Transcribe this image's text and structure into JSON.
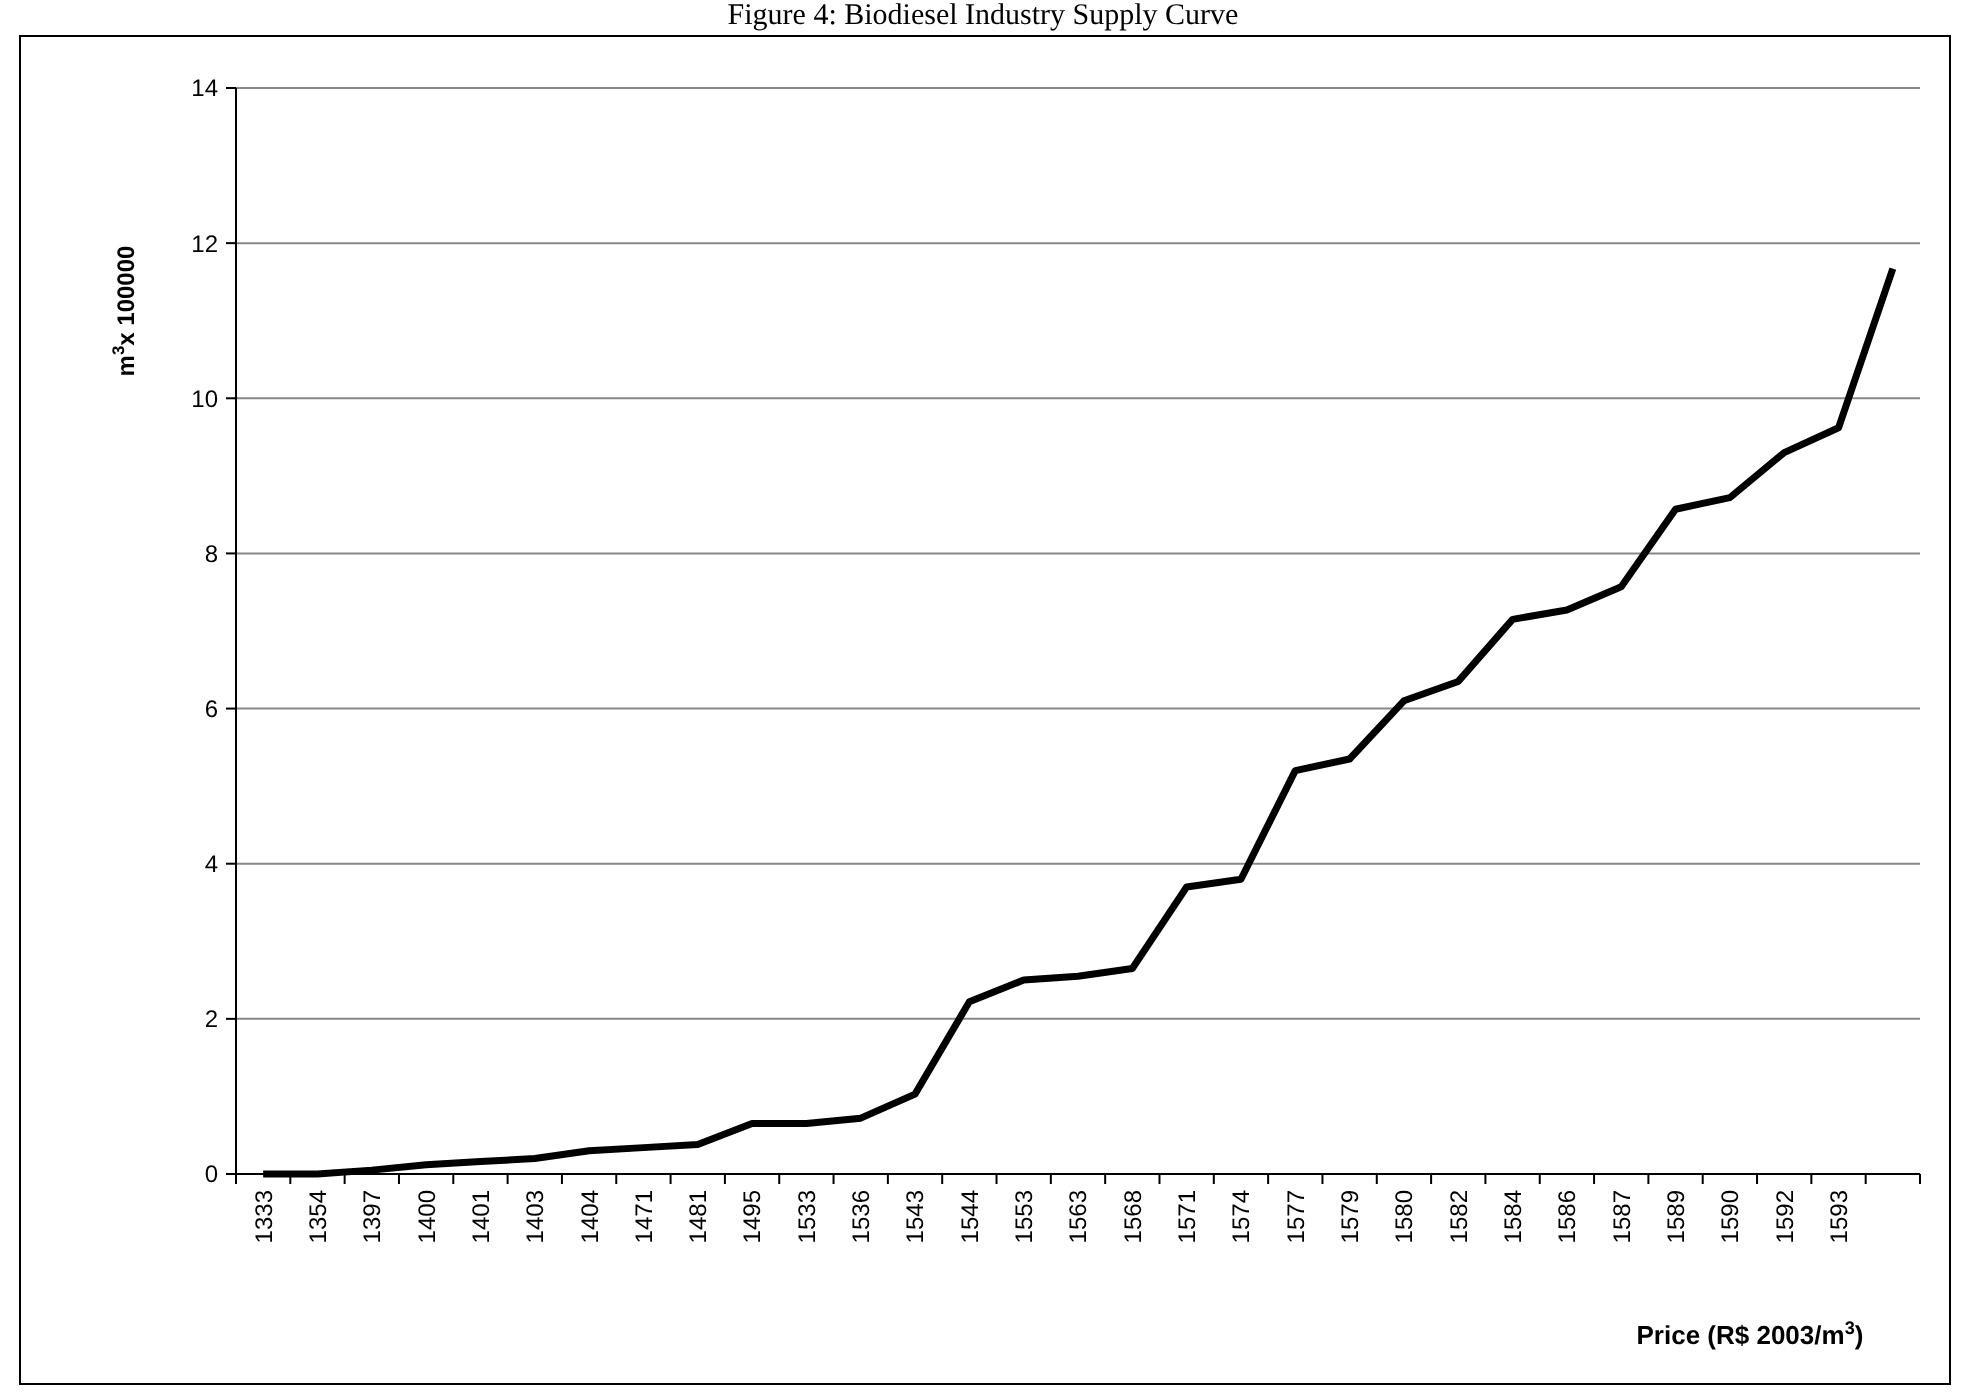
{
  "chart_data": {
    "type": "line",
    "title": "Figure 4: Biodiesel Industry Supply Curve",
    "xlabel": "Price (R$ 2003/m$^{3}$)",
    "ylabel": "m$^{3}$x 100000",
    "categories": [
      "1333",
      "1354",
      "1397",
      "1400",
      "1401",
      "1403",
      "1404",
      "1471",
      "1481",
      "1495",
      "1533",
      "1536",
      "1543",
      "1544",
      "1553",
      "1563",
      "1568",
      "1571",
      "1574",
      "1577",
      "1579",
      "1580",
      "1582",
      "1584",
      "1586",
      "1587",
      "1589",
      "1590",
      "1592",
      "1593",
      null
    ],
    "series": [
      {
        "color": "#000000",
        "values": [
          0,
          0,
          0.05,
          0.12,
          0.16,
          0.2,
          0.3,
          0.34,
          0.38,
          0.65,
          0.65,
          0.72,
          1.03,
          2.22,
          2.5,
          2.55,
          2.65,
          3.7,
          3.8,
          5.2,
          5.35,
          6.1,
          6.35,
          7.15,
          7.27,
          7.57,
          8.57,
          8.72,
          9.3,
          9.62,
          11.67
        ]
      }
    ],
    "ylim": [
      0,
      14
    ],
    "yticks": [
      0,
      2,
      4,
      6,
      8,
      10,
      12,
      14
    ],
    "grid": "y",
    "marker": "none",
    "line_style": "solid"
  }
}
